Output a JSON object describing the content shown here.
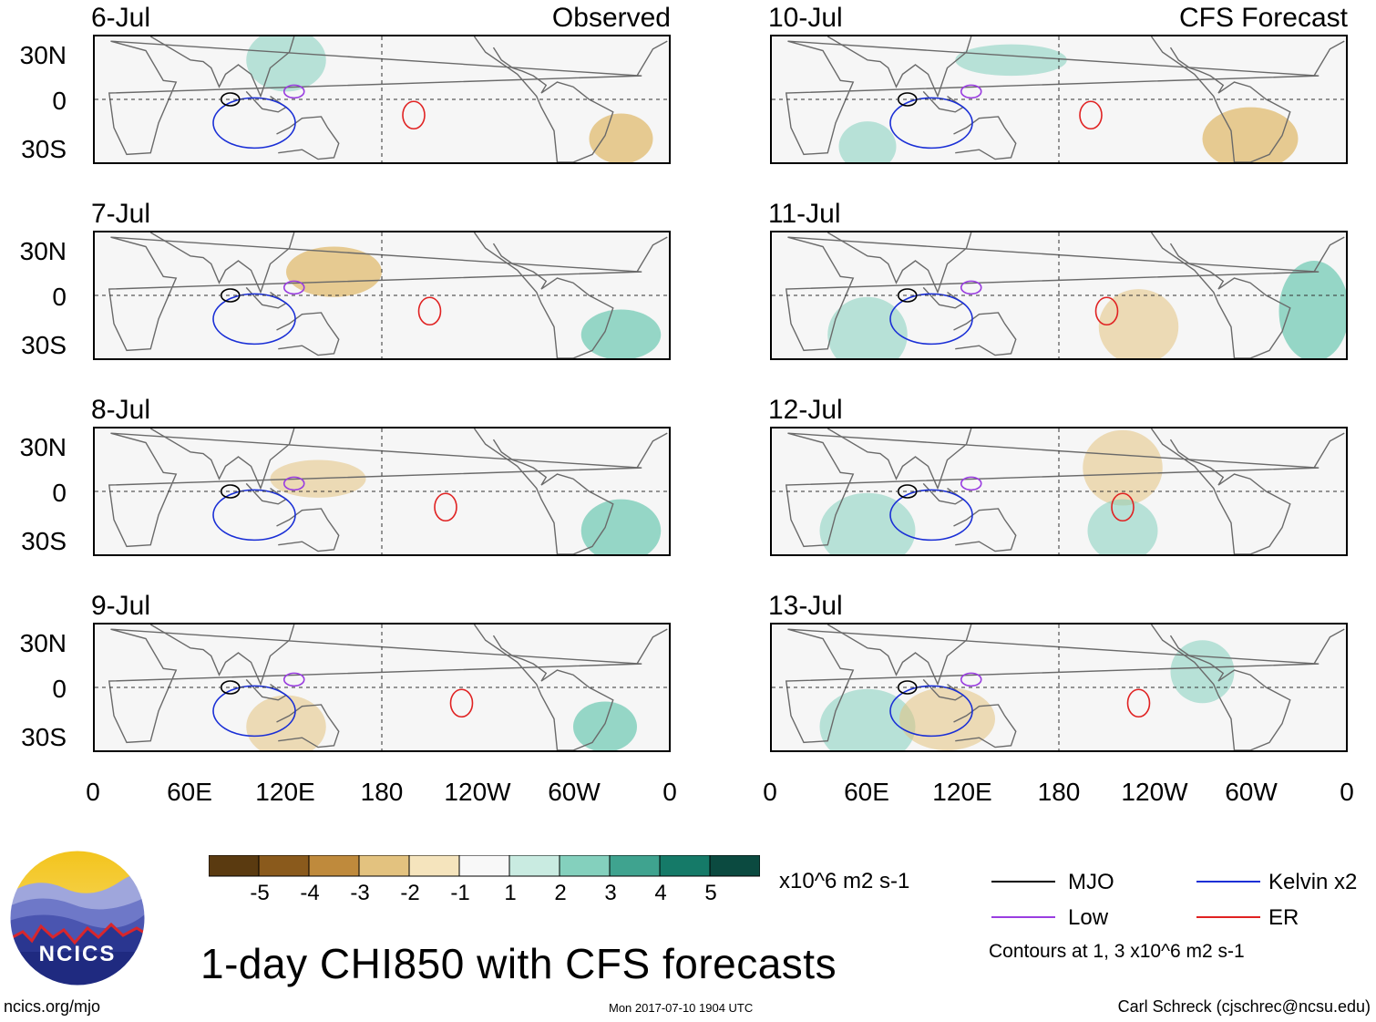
{
  "chart_data": {
    "type": "heatmap",
    "title": "1-day CHI850 with CFS forecasts",
    "units": "x10^6 m2 s-1",
    "columns": [
      {
        "label": "Observed",
        "dates": [
          "6-Jul",
          "7-Jul",
          "8-Jul",
          "9-Jul"
        ]
      },
      {
        "label": "CFS Forecast",
        "dates": [
          "10-Jul",
          "11-Jul",
          "12-Jul",
          "13-Jul"
        ]
      }
    ],
    "lat_ticks": [
      "30N",
      "0",
      "30S"
    ],
    "lon_ticks": [
      "0",
      "60E",
      "120E",
      "180",
      "120W",
      "60W",
      "0"
    ],
    "colorbar": {
      "labels": [
        "-5",
        "-4",
        "-3",
        "-2",
        "-1",
        "1",
        "2",
        "3",
        "4",
        "5"
      ],
      "colors": [
        "#5a3a10",
        "#8a5a1c",
        "#bf8a3c",
        "#e3c27f",
        "#f5e4bd",
        "#f8f8f8",
        "#c9ebe1",
        "#84d0bd",
        "#3fa38f",
        "#157a68",
        "#0b4a40"
      ]
    },
    "legend": [
      {
        "label": "MJO",
        "color": "#000000"
      },
      {
        "label": "Kelvin x2",
        "color": "#1a2fd6"
      },
      {
        "label": "Low",
        "color": "#9a3ee0"
      },
      {
        "label": "ER",
        "color": "#e02222"
      }
    ],
    "contour_note": "Contours at 1, 3 x10^6 m2 s-1"
  },
  "footer": {
    "left": "ncics.org/mjo",
    "center": "Mon 2017-07-10 1904 UTC",
    "right": "Carl Schreck (cjschrec@ncsu.edu)"
  },
  "logo_text": "NCICS"
}
